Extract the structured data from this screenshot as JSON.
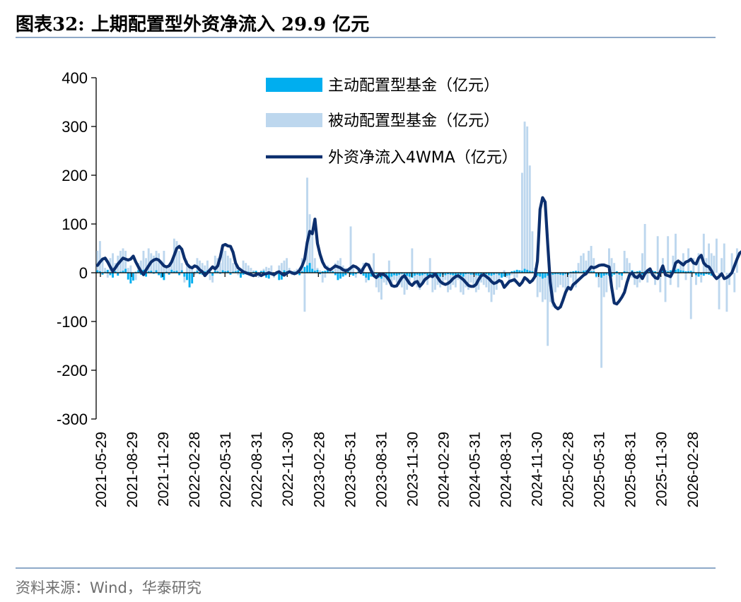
{
  "header": {
    "title": "图表32:  上期配置型外资净流入 29.9 亿元"
  },
  "footer": {
    "source": "资料来源：Wind，华泰研究"
  },
  "colors": {
    "active": "#00aeef",
    "passive": "#bdd7ee",
    "line": "#0c2f6e",
    "rule": "#8ea9c8"
  },
  "chart_data": {
    "type": "bar",
    "title": "上期配置型外资净流入 29.9 亿元",
    "ylim": [
      -300,
      400
    ],
    "yticks": [
      400,
      300,
      200,
      100,
      0,
      -100,
      -200,
      -300
    ],
    "xticks": [
      "2021-05-29",
      "2021-08-29",
      "2021-11-29",
      "2022-02-28",
      "2022-05-31",
      "2022-08-31",
      "2022-11-30",
      "2023-02-28",
      "2023-05-31",
      "2023-08-31",
      "2023-11-30",
      "2024-02-29",
      "2024-05-31",
      "2024-08-31",
      "2024-11-30",
      "2025-02-28",
      "2025-05-31",
      "2025-08-31",
      "2025-11-30",
      "2026-02-28"
    ],
    "legend_position": "top",
    "series": [
      {
        "name": "主动配置型基金（亿元）",
        "type": "bar",
        "values": [
          5,
          3,
          -4,
          2,
          6,
          -5,
          -10,
          3,
          -6,
          2,
          4,
          8,
          -14,
          -22,
          -16,
          2,
          5,
          -4,
          6,
          -8,
          3,
          4,
          -2,
          5,
          -5,
          -10,
          -15,
          2,
          -4,
          6,
          3,
          4,
          -5,
          5,
          -8,
          -15,
          -30,
          -22,
          2,
          4,
          -3,
          -4,
          3,
          5,
          2,
          -6,
          4,
          3,
          -2,
          5,
          3,
          4,
          -4,
          2,
          3,
          5,
          -10,
          -4,
          -3,
          2,
          -3,
          2,
          4,
          -2,
          3,
          4,
          -10,
          -12,
          -5,
          -3,
          -2,
          -15,
          -14,
          5,
          3,
          4,
          3,
          2,
          -2,
          -5,
          3,
          12,
          15,
          20,
          8,
          4,
          6,
          -3,
          3,
          4,
          5,
          2,
          3,
          -5,
          -15,
          -12,
          -8,
          -5,
          3,
          -4,
          -6,
          -3,
          2,
          -2,
          -6,
          -10,
          -15,
          -8,
          -4,
          -3,
          -10,
          -12,
          -6,
          -4,
          -12,
          -8,
          -5,
          -6,
          -4,
          -2,
          -4,
          -6,
          -8,
          -10,
          -6,
          -4,
          -6,
          -5,
          -3,
          -6,
          -4,
          -5,
          -3,
          -6,
          -8,
          -4,
          -5,
          -3,
          -4,
          -5,
          -6,
          -3,
          -5,
          -8,
          -3,
          -2,
          -4,
          -4,
          -5,
          -6,
          -8,
          -6,
          -3,
          -5,
          -6,
          -4,
          -2,
          -5,
          -10,
          -8,
          -6,
          -5,
          3,
          4,
          6,
          5,
          4,
          8,
          6,
          4,
          3,
          -5,
          -6,
          -8,
          -12,
          -10,
          -6,
          -5,
          -4,
          -3,
          -3,
          -4,
          -5,
          -3,
          -4,
          2,
          3,
          4,
          3,
          2,
          4,
          5,
          3,
          3,
          3,
          -8,
          -5,
          -10,
          -6,
          -4,
          -6,
          -8,
          -4,
          3,
          -4,
          -6,
          3,
          2,
          -3,
          5,
          2,
          3,
          4,
          -4,
          3,
          2,
          5,
          4,
          3,
          -3,
          2,
          4,
          5,
          3,
          5,
          4,
          6,
          8,
          5,
          4,
          3,
          3,
          4,
          2,
          -5,
          -8,
          -4,
          -6,
          -3,
          -4,
          -6
        ],
        "color": "#00aeef"
      },
      {
        "name": "被动配置型基金（亿元）",
        "type": "bar",
        "values": [
          45,
          65,
          25,
          10,
          -10,
          30,
          40,
          20,
          35,
          45,
          50,
          45,
          10,
          15,
          -5,
          -15,
          20,
          25,
          45,
          30,
          50,
          40,
          35,
          45,
          40,
          25,
          45,
          15,
          10,
          25,
          70,
          65,
          45,
          20,
          -20,
          25,
          15,
          10,
          -5,
          30,
          25,
          20,
          15,
          25,
          -15,
          -20,
          35,
          30,
          20,
          50,
          45,
          35,
          30,
          20,
          15,
          -5,
          -10,
          25,
          20,
          15,
          10,
          5,
          -5,
          -10,
          5,
          8,
          12,
          10,
          15,
          -10,
          -5,
          15,
          20,
          25,
          30,
          10,
          -5,
          5,
          8,
          10,
          30,
          -80,
          195,
          120,
          80,
          30,
          10,
          5,
          -20,
          -10,
          15,
          10,
          5,
          20,
          25,
          30,
          15,
          10,
          5,
          95,
          15,
          -10,
          5,
          10,
          20,
          -20,
          -15,
          10,
          40,
          -30,
          -40,
          -55,
          -20,
          -25,
          25,
          -30,
          -15,
          -20,
          -25,
          -30,
          -45,
          -35,
          -25,
          50,
          -25,
          -30,
          -35,
          -20,
          -15,
          -25,
          30,
          -40,
          -35,
          -25,
          -30,
          -20,
          -15,
          -40,
          -35,
          -25,
          -30,
          -15,
          -40,
          -45,
          -30,
          -35,
          -20,
          -25,
          -40,
          -35,
          -20,
          -25,
          -30,
          -40,
          -60,
          -45,
          -35,
          -20,
          -10,
          5,
          -10,
          -15,
          -5,
          -20,
          -10,
          5,
          205,
          310,
          300,
          220,
          85,
          10,
          -50,
          -40,
          -60,
          -55,
          -150,
          -60,
          -70,
          -40,
          -30,
          -25,
          -30,
          -40,
          -35,
          -10,
          -20,
          -30,
          20,
          35,
          40,
          25,
          45,
          55,
          30,
          -10,
          -30,
          -195,
          -50,
          -40,
          50,
          30,
          20,
          -35,
          -30,
          -15,
          45,
          30,
          20,
          -10,
          -25,
          -30,
          -20,
          40,
          100,
          -20,
          5,
          -5,
          -25,
          75,
          -40,
          30,
          -60,
          75,
          -25,
          35,
          80,
          -30,
          20,
          40,
          -15,
          50,
          -95,
          30,
          -25,
          40,
          -20,
          80,
          30,
          60,
          40,
          35,
          70,
          -75,
          30,
          60,
          -80,
          -25,
          40,
          -40,
          50
        ],
        "color": "#bdd7ee"
      },
      {
        "name": "外资净流入4WMA（亿元）",
        "type": "line",
        "values": [
          15,
          22,
          28,
          30,
          22,
          12,
          3,
          10,
          18,
          24,
          30,
          28,
          26,
          28,
          34,
          22,
          12,
          3,
          -4,
          6,
          14,
          22,
          26,
          28,
          26,
          20,
          14,
          12,
          14,
          22,
          36,
          50,
          54,
          48,
          30,
          18,
          12,
          10,
          14,
          12,
          6,
          2,
          -6,
          0,
          6,
          12,
          8,
          14,
          32,
          56,
          58,
          55,
          54,
          42,
          20,
          10,
          6,
          2,
          0,
          -2,
          -4,
          -6,
          -4,
          -2,
          -6,
          -3,
          -2,
          0,
          -2,
          -4,
          0,
          2,
          -2,
          -5,
          -1,
          2,
          0,
          -2,
          0,
          5,
          14,
          28,
          62,
          85,
          80,
          110,
          60,
          38,
          22,
          12,
          8,
          6,
          10,
          14,
          12,
          10,
          6,
          4,
          6,
          10,
          14,
          12,
          8,
          0,
          10,
          18,
          16,
          4,
          -6,
          -10,
          -4,
          -3,
          -4,
          -8,
          -15,
          -26,
          -28,
          -27,
          -18,
          -10,
          -6,
          -14,
          -22,
          -26,
          -20,
          -18,
          -28,
          -22,
          -14,
          -10,
          -6,
          -8,
          -2,
          -10,
          -18,
          -22,
          -24,
          -22,
          -18,
          -12,
          -8,
          -6,
          -10,
          -14,
          -20,
          -26,
          -28,
          -28,
          -24,
          -14,
          -6,
          -4,
          -8,
          -12,
          -18,
          -22,
          -20,
          -16,
          -18,
          -30,
          -24,
          -18,
          -16,
          -14,
          -20,
          -26,
          -20,
          -10,
          -14,
          -20,
          -16,
          -8,
          24,
          130,
          154,
          145,
          60,
          -20,
          -60,
          -70,
          -74,
          -70,
          -56,
          -40,
          -30,
          -34,
          -24,
          -20,
          -15,
          -10,
          -5,
          -2,
          5,
          12,
          10,
          12,
          15,
          16,
          16,
          14,
          12,
          -30,
          -62,
          -64,
          -58,
          -50,
          -40,
          -20,
          -4,
          0,
          -8,
          -10,
          -4,
          -12,
          -2,
          4,
          8,
          -4,
          -10,
          -12,
          2,
          14,
          -4,
          -6,
          -8,
          2,
          20,
          24,
          20,
          16,
          22,
          24,
          28,
          20,
          18,
          30,
          36,
          20,
          14,
          12,
          4,
          -6,
          -12,
          -8,
          -2,
          -12,
          -10,
          -6,
          0,
          14,
          28,
          40,
          44,
          40,
          32,
          28,
          36,
          40,
          44,
          16,
          6,
          -10,
          -34,
          -18,
          -6,
          4,
          10,
          2,
          6,
          8
        ],
        "color": "#0c2f6e"
      }
    ]
  }
}
